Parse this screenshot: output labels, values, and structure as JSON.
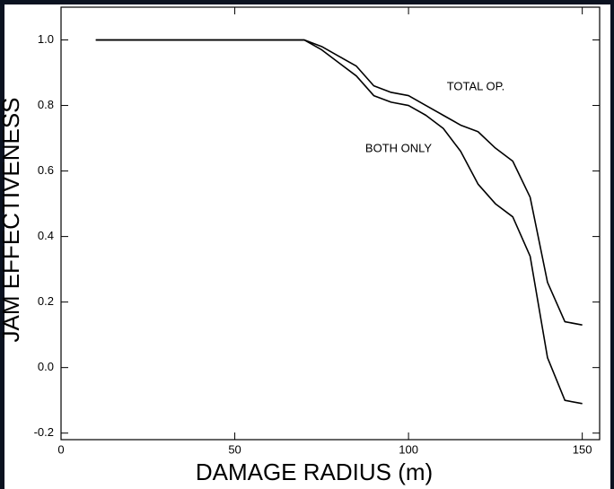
{
  "chart_data": {
    "type": "line",
    "xlabel": "DAMAGE RADIUS (m)",
    "ylabel": "JAM EFFECTIVENESS",
    "x": [
      10,
      70,
      75,
      80,
      85,
      90,
      95,
      100,
      105,
      110,
      115,
      120,
      125,
      130,
      135,
      140,
      145,
      150
    ],
    "series": [
      {
        "name": "TOTAL OP.",
        "color": "#000000",
        "values": [
          1.0,
          1.0,
          0.98,
          0.95,
          0.92,
          0.86,
          0.84,
          0.83,
          0.8,
          0.77,
          0.74,
          0.72,
          0.67,
          0.63,
          0.52,
          0.26,
          0.14,
          0.13
        ]
      },
      {
        "name": "BOTH ONLY",
        "color": "#000000",
        "values": [
          1.0,
          1.0,
          0.97,
          0.93,
          0.89,
          0.83,
          0.81,
          0.8,
          0.77,
          0.73,
          0.66,
          0.56,
          0.5,
          0.46,
          0.34,
          0.03,
          -0.1,
          -0.11
        ]
      }
    ],
    "xlim": [
      0,
      155
    ],
    "xticks": [
      0,
      50,
      100,
      150
    ],
    "ylim": [
      -0.22,
      1.1
    ],
    "yticks": [
      -0.2,
      {
        "value": 0.0,
        "label": "0.0"
      },
      0.2,
      0.4,
      0.6,
      0.8,
      {
        "value": 1.0,
        "label": "1.0"
      }
    ],
    "grid": false
  }
}
